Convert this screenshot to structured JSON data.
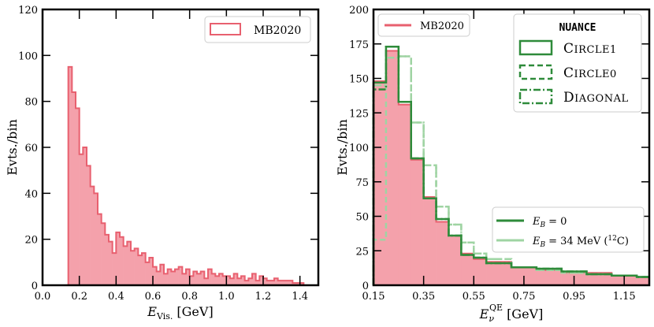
{
  "colors": {
    "mb_fill": "#f4a1ab",
    "mb_edge": "#e8606f",
    "green_dark": "#2e8b3a",
    "green_light": "#9fd4a3"
  },
  "chart_data": [
    {
      "type": "bar",
      "title": "",
      "xlabel": "E_{Vis.} [GeV]",
      "xlabel_main": "E",
      "xlabel_sub": "Vis.",
      "xlabel_unit": "[GeV]",
      "ylabel": "Evts./bin",
      "xlim": [
        0.0,
        1.5
      ],
      "ylim": [
        0,
        120
      ],
      "xticks": [
        "0.0",
        "0.2",
        "0.4",
        "0.6",
        "0.8",
        "1.0",
        "1.2",
        "1.4"
      ],
      "yticks": [
        "0",
        "20",
        "40",
        "60",
        "80",
        "100",
        "120"
      ],
      "bin_start": 0.14,
      "bin_width": 0.02,
      "values": [
        95,
        84,
        77,
        57,
        60,
        52,
        43,
        40,
        31,
        27,
        22,
        19,
        14,
        23,
        21,
        17,
        19,
        15,
        16,
        13,
        14,
        10,
        12,
        8,
        6,
        9,
        5,
        7,
        6,
        7,
        8,
        5,
        7,
        4,
        6,
        5,
        6,
        3,
        7,
        5,
        4,
        5,
        4,
        4,
        3,
        5,
        3,
        4,
        2,
        3,
        5,
        2,
        4,
        3,
        2,
        2,
        3,
        2,
        2,
        2,
        2,
        1,
        1,
        1,
        0,
        0,
        0
      ],
      "series_name": "MB2020",
      "legend": {
        "position": "top-right",
        "entries": [
          "MB2020"
        ]
      }
    },
    {
      "type": "bar",
      "title": "",
      "xlabel": "E_ν^{QE} [GeV]",
      "xlabel_main": "E",
      "xlabel_sub": "ν",
      "xlabel_sup": "QE",
      "xlabel_unit": "[GeV]",
      "ylabel": "Evts./bin",
      "xlim": [
        0.15,
        1.25
      ],
      "ylim": [
        0,
        200
      ],
      "xticks": [
        "0.15",
        "0.35",
        "0.55",
        "0.75",
        "0.95",
        "1.15"
      ],
      "yticks": [
        "0",
        "25",
        "50",
        "75",
        "100",
        "125",
        "150",
        "175",
        "200"
      ],
      "bin_edges": [
        0.15,
        0.2,
        0.25,
        0.3,
        0.35,
        0.4,
        0.45,
        0.5,
        0.55,
        0.6,
        0.7,
        0.8,
        0.9,
        1.0,
        1.1,
        1.2,
        1.25
      ],
      "series": [
        {
          "name": "MB2020",
          "values": [
            148,
            170,
            131,
            91,
            64,
            46,
            36,
            23,
            19,
            17,
            13,
            11,
            9,
            9,
            7,
            6
          ]
        },
        {
          "name": "Circle1 (E_B = 0)",
          "values": [
            147,
            173,
            133,
            92,
            63,
            48,
            36,
            22,
            20,
            16,
            13,
            12,
            10,
            8,
            7,
            6
          ]
        },
        {
          "name": "Diagonal (E_B = 0)",
          "values": [
            142,
            173,
            133,
            92,
            63,
            48,
            36,
            22,
            20,
            16,
            13,
            12,
            10,
            8,
            7,
            6
          ]
        },
        {
          "name": "Circle0 (E_B = 34 MeV)",
          "values": [
            33,
            165,
            166,
            118,
            87,
            57,
            44,
            31,
            23,
            19,
            13,
            11,
            9,
            8,
            7,
            6
          ]
        },
        {
          "name": "Diagonal (E_B = 34 MeV)",
          "values": [
            145,
            165,
            166,
            118,
            87,
            57,
            44,
            31,
            23,
            19,
            13,
            11,
            9,
            8,
            7,
            6
          ]
        }
      ],
      "legend_main": {
        "position": "top-left",
        "entries": [
          "MB2020"
        ]
      },
      "legend_style": {
        "position": "top-right",
        "title": "NUANCE",
        "entries": [
          {
            "label": "Circle1",
            "first": "C",
            "rest": "IRCLE1"
          },
          {
            "label": "Circle0",
            "first": "C",
            "rest": "IRCLE0"
          },
          {
            "label": "Diagonal",
            "first": "D",
            "rest": "IAGONAL"
          }
        ]
      },
      "legend_energy": {
        "position": "lower-right",
        "entries": [
          {
            "label": "E_B = 0",
            "main": "E",
            "sub": "B",
            "value": "= 0"
          },
          {
            "label": "E_B = 34 MeV (12C)",
            "main": "E",
            "sub": "B",
            "value": "= 34 MeV (",
            "iso_mass": "12",
            "iso_elem": "C)"
          }
        ]
      }
    }
  ]
}
